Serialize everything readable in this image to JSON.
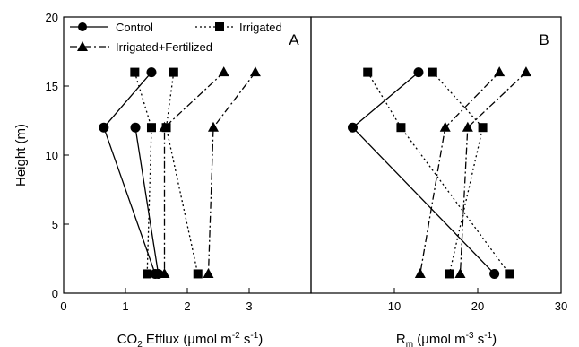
{
  "chart_data": [
    {
      "type": "line",
      "panel_label": "A",
      "xlabel_parts": [
        "CO",
        "2",
        " Efflux (µmol m",
        "-2",
        " s",
        "-1",
        ")"
      ],
      "ylabel": "Height (m)",
      "xlim": [
        0,
        4
      ],
      "ylim": [
        0,
        20
      ],
      "x_ticks": [
        "0",
        "1",
        "2",
        "3"
      ],
      "y_ticks": [
        "0",
        "5",
        "10",
        "15",
        "20"
      ],
      "legend": {
        "placement": "top-left",
        "entries": [
          "Control",
          "Irrigated",
          "Irrigated+Fertilized"
        ]
      },
      "series": [
        {
          "name": "Control",
          "marker": "circle",
          "style": "solid",
          "points": [
            [
              1.42,
              16
            ],
            [
              0.65,
              12
            ],
            [
              1.48,
              1.4
            ]
          ]
        },
        {
          "name": "Control",
          "marker": "circle",
          "style": "solid",
          "points": [
            [
              1.16,
              12
            ],
            [
              1.53,
              1.4
            ]
          ]
        },
        {
          "name": "Irrigated",
          "marker": "square",
          "style": "dotted",
          "points": [
            [
              1.15,
              16
            ],
            [
              1.42,
              12
            ],
            [
              1.35,
              1.4
            ]
          ]
        },
        {
          "name": "Irrigated",
          "marker": "square",
          "style": "dotted",
          "points": [
            [
              1.78,
              16
            ],
            [
              1.66,
              12
            ],
            [
              2.17,
              1.4
            ]
          ]
        },
        {
          "name": "Irrigated+Fertilized",
          "marker": "triangle",
          "style": "dashdot",
          "points": [
            [
              2.59,
              16
            ],
            [
              1.63,
              12
            ],
            [
              1.63,
              1.4
            ]
          ]
        },
        {
          "name": "Irrigated+Fertilized",
          "marker": "triangle",
          "style": "dashdot",
          "points": [
            [
              3.1,
              16
            ],
            [
              2.42,
              12
            ],
            [
              2.34,
              1.4
            ]
          ]
        }
      ]
    },
    {
      "type": "line",
      "panel_label": "B",
      "xlabel_parts": [
        "R",
        "m",
        " (µmol m",
        "-3",
        " s",
        "-1",
        ")"
      ],
      "xlim": [
        0,
        30
      ],
      "ylim": [
        0,
        20
      ],
      "x_ticks": [
        "10",
        "20",
        "30"
      ],
      "series": [
        {
          "name": "Control",
          "marker": "circle",
          "style": "solid",
          "points": [
            [
              12.9,
              16
            ],
            [
              5,
              12
            ],
            [
              22,
              1.4
            ]
          ]
        },
        {
          "name": "Irrigated",
          "marker": "square",
          "style": "dotted",
          "points": [
            [
              6.8,
              16
            ],
            [
              10.8,
              12
            ],
            [
              23.8,
              1.4
            ]
          ]
        },
        {
          "name": "Irrigated",
          "marker": "square",
          "style": "dotted",
          "points": [
            [
              14.6,
              16
            ],
            [
              20.6,
              12
            ],
            [
              16.6,
              1.4
            ]
          ]
        },
        {
          "name": "Irrigated+Fertilized",
          "marker": "triangle",
          "style": "dashdot",
          "points": [
            [
              22.6,
              16
            ],
            [
              16.1,
              12
            ],
            [
              13.1,
              1.4
            ]
          ]
        },
        {
          "name": "Irrigated+Fertilized",
          "marker": "triangle",
          "style": "dashdot",
          "points": [
            [
              25.8,
              16
            ],
            [
              18.8,
              12
            ],
            [
              17.9,
              1.4
            ]
          ]
        }
      ]
    }
  ]
}
